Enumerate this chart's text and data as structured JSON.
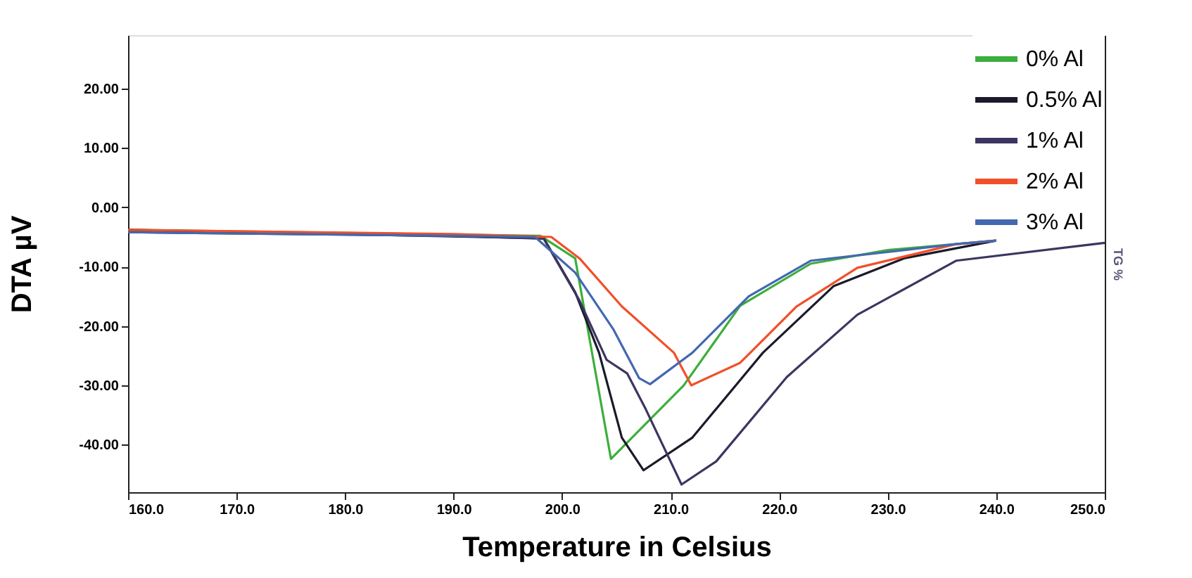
{
  "chart_data": {
    "type": "line",
    "xlabel": "Temperature in Celsius",
    "ylabel": "DTA µV",
    "y2label": "TG %",
    "xlim": [
      160,
      250
    ],
    "xticks": [
      {
        "value": 160,
        "label": "160.0"
      },
      {
        "value": 170,
        "label": "170.0"
      },
      {
        "value": 180,
        "label": "180.0"
      },
      {
        "value": 190,
        "label": "190.0"
      },
      {
        "value": 200,
        "label": "200.0"
      },
      {
        "value": 210,
        "label": "210.0"
      },
      {
        "value": 220,
        "label": "220.0"
      },
      {
        "value": 230,
        "label": "230.0"
      },
      {
        "value": 240,
        "label": "240.0"
      },
      {
        "value": 250,
        "label": "250.0"
      }
    ],
    "ylim": [
      -48,
      29
    ],
    "yticks": [
      {
        "value": -40,
        "label": "-40.00"
      },
      {
        "value": -30,
        "label": "-30.00"
      },
      {
        "value": -20,
        "label": "-20.00"
      },
      {
        "value": -10,
        "label": "-10.00"
      },
      {
        "value": 0,
        "label": "0.00"
      },
      {
        "value": 10,
        "label": "10.00"
      },
      {
        "value": 20,
        "label": "20.00"
      }
    ],
    "grid": false,
    "legend": "top right",
    "marker": "none",
    "line_style": "solid",
    "series": [
      {
        "name": "0% Al",
        "color": "#3cae3c",
        "x": [
          160,
          198,
          201.2,
          202.8,
          204.5,
          211.2,
          216.4,
          222.9,
          230,
          236.3,
          240
        ],
        "values": [
          -3.8,
          -4.8,
          -8.6,
          -25,
          -42.4,
          -30,
          -16.6,
          -9.5,
          -7.2,
          -6.2,
          -5.6
        ]
      },
      {
        "name": "0.5% Al",
        "color": "#1a1a2a",
        "x": [
          160,
          198.3,
          201.2,
          203.4,
          205.5,
          207.5,
          212,
          218.5,
          225,
          231.5,
          240
        ],
        "values": [
          -3.8,
          -5.2,
          -14.3,
          -24.5,
          -38.8,
          -44.3,
          -38.8,
          -24.5,
          -13.3,
          -8.6,
          -5.6
        ]
      },
      {
        "name": "1% Al",
        "color": "#3d3560",
        "x": [
          160,
          190,
          198.3,
          201.6,
          204.1,
          206,
          207.7,
          211,
          214.2,
          220.7,
          227.2,
          236.3,
          250
        ],
        "values": [
          -4.2,
          -4.8,
          -5.3,
          -15.7,
          -25.7,
          -28,
          -34,
          -46.7,
          -42.8,
          -28.6,
          -18.1,
          -9,
          -6
        ]
      },
      {
        "name": "2% Al",
        "color": "#f0502a",
        "x": [
          160,
          190,
          199,
          201.6,
          205.5,
          210.3,
          211,
          211.9,
          216.4,
          221.6,
          227.2,
          236.3,
          240
        ],
        "values": [
          -3.8,
          -4.5,
          -5,
          -8.6,
          -16.7,
          -24.5,
          -26.9,
          -30,
          -26.2,
          -16.7,
          -10.2,
          -6.2,
          -5.6
        ]
      },
      {
        "name": "3% Al",
        "color": "#4468b0",
        "x": [
          160,
          190,
          197.5,
          201.2,
          204.7,
          207.1,
          208.1,
          212,
          217.2,
          222.9,
          236.3,
          240
        ],
        "values": [
          -4.2,
          -4.8,
          -5,
          -11,
          -20.5,
          -28.8,
          -29.8,
          -24.5,
          -15,
          -9,
          -6.2,
          -5.6
        ]
      }
    ]
  }
}
